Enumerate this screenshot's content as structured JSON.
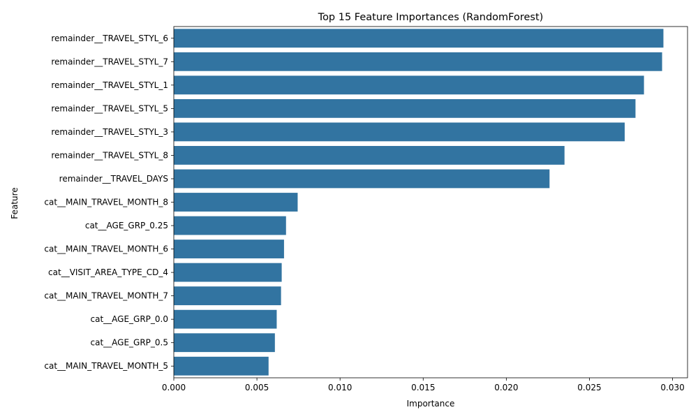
{
  "chart_data": {
    "type": "bar",
    "orientation": "horizontal",
    "title": "Top 15 Feature Importances (RandomForest)",
    "xlabel": "Importance",
    "ylabel": "Feature",
    "xlim": [
      0,
      0.0309
    ],
    "xticks": [
      0.0,
      0.005,
      0.01,
      0.015,
      0.02,
      0.025,
      0.03
    ],
    "xtick_labels": [
      "0.000",
      "0.005",
      "0.010",
      "0.015",
      "0.020",
      "0.025",
      "0.030"
    ],
    "bar_color": "#3274a1",
    "grid": false,
    "categories": [
      "remainder__TRAVEL_STYL_6",
      "remainder__TRAVEL_STYL_7",
      "remainder__TRAVEL_STYL_1",
      "remainder__TRAVEL_STYL_5",
      "remainder__TRAVEL_STYL_3",
      "remainder__TRAVEL_STYL_8",
      "remainder__TRAVEL_DAYS",
      "cat__MAIN_TRAVEL_MONTH_8",
      "cat__AGE_GRP_0.25",
      "cat__MAIN_TRAVEL_MONTH_6",
      "cat__VISIT_AREA_TYPE_CD_4",
      "cat__MAIN_TRAVEL_MONTH_7",
      "cat__AGE_GRP_0.0",
      "cat__AGE_GRP_0.5",
      "cat__MAIN_TRAVEL_MONTH_5"
    ],
    "values": [
      0.02945,
      0.02937,
      0.02828,
      0.02777,
      0.02712,
      0.0235,
      0.0226,
      0.00745,
      0.00675,
      0.00663,
      0.00649,
      0.00645,
      0.00619,
      0.00608,
      0.0057
    ]
  }
}
